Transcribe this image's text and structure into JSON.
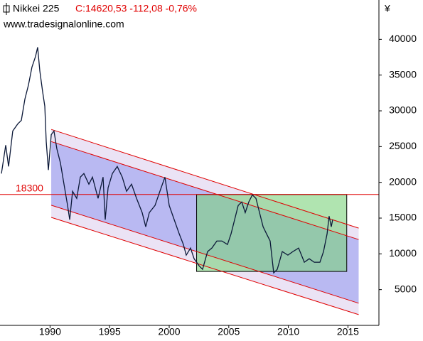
{
  "chart_data": {
    "type": "line",
    "title": "Nikkei 225",
    "quote": "C:14620,53 -112,08 -0,76%",
    "source": "www.tradesignalonline.com",
    "y_unit": "¥",
    "xlim": [
      1985.8,
      2017.6
    ],
    "xticks": [
      1990,
      1995,
      2000,
      2005,
      2010,
      2015
    ],
    "ylim": [
      0,
      45500
    ],
    "yticks": [
      5000,
      10000,
      15000,
      20000,
      25000,
      30000,
      35000,
      40000
    ],
    "x": [
      1985.92,
      1986.28,
      1986.52,
      1986.87,
      1987.29,
      1987.59,
      1987.89,
      1988.19,
      1988.48,
      1988.78,
      1988.96,
      1989.14,
      1989.38,
      1989.56,
      1989.68,
      1989.86,
      1990.1,
      1990.33,
      1990.57,
      1990.87,
      1991.17,
      1991.47,
      1991.65,
      1991.89,
      1992.24,
      1992.54,
      1992.84,
      1993.26,
      1993.56,
      1994.03,
      1994.45,
      1994.63,
      1994.87,
      1995.23,
      1995.64,
      1996.06,
      1996.42,
      1996.84,
      1997.26,
      1997.73,
      1998.03,
      1998.33,
      1998.81,
      1999.22,
      1999.64,
      2000.0,
      2000.42,
      2000.84,
      2001.19,
      2001.43,
      2001.79,
      2002.09,
      2002.51,
      2002.8,
      2003.22,
      2003.58,
      2004.0,
      2004.42,
      2004.89,
      2005.19,
      2005.49,
      2005.79,
      2006.09,
      2006.38,
      2006.68,
      2006.98,
      2007.28,
      2007.58,
      2007.88,
      2008.17,
      2008.47,
      2008.77,
      2009.07,
      2009.49,
      2009.96,
      2010.38,
      2010.86,
      2011.34,
      2011.75,
      2012.17,
      2012.65,
      2012.95,
      2013.25,
      2013.42,
      2013.6,
      2013.72
    ],
    "series": [
      {
        "color": "#0b1838",
        "values": [
          21230,
          25200,
          22220,
          27180,
          28170,
          28670,
          31640,
          33630,
          36110,
          37600,
          38890,
          35610,
          32640,
          30650,
          25690,
          21720,
          26680,
          27180,
          24700,
          22720,
          19740,
          16770,
          14780,
          18750,
          17760,
          20730,
          21230,
          19740,
          20730,
          17760,
          20730,
          14780,
          19240,
          21230,
          22220,
          20730,
          18750,
          19740,
          17760,
          15770,
          13790,
          15770,
          16770,
          18750,
          20730,
          16770,
          14780,
          12800,
          11310,
          9820,
          10810,
          9320,
          8330,
          7840,
          10320,
          10810,
          11800,
          11800,
          11310,
          12800,
          14780,
          16770,
          17260,
          15770,
          17260,
          18250,
          17760,
          15770,
          13790,
          12800,
          11800,
          7340,
          7840,
          10320,
          9820,
          10320,
          10810,
          8830,
          9320,
          8830,
          8830,
          10320,
          12800,
          15280,
          13790,
          14780
        ]
      }
    ],
    "channel": {
      "color": "#e00000",
      "outer_fill": "#ebe3f5",
      "inner_fill": "#b9b9f2",
      "x": [
        1990.1,
        2015.9
      ],
      "lines": [
        [
          27400,
          13600
        ],
        [
          25700,
          12000
        ],
        [
          16800,
          3100
        ],
        [
          15100,
          1500
        ]
      ]
    },
    "box": {
      "color": "#7cd27c",
      "x": [
        2002.3,
        2014.9
      ],
      "y": [
        7540,
        18300
      ]
    },
    "hline": {
      "value": 18300,
      "color": "#e00000"
    }
  }
}
